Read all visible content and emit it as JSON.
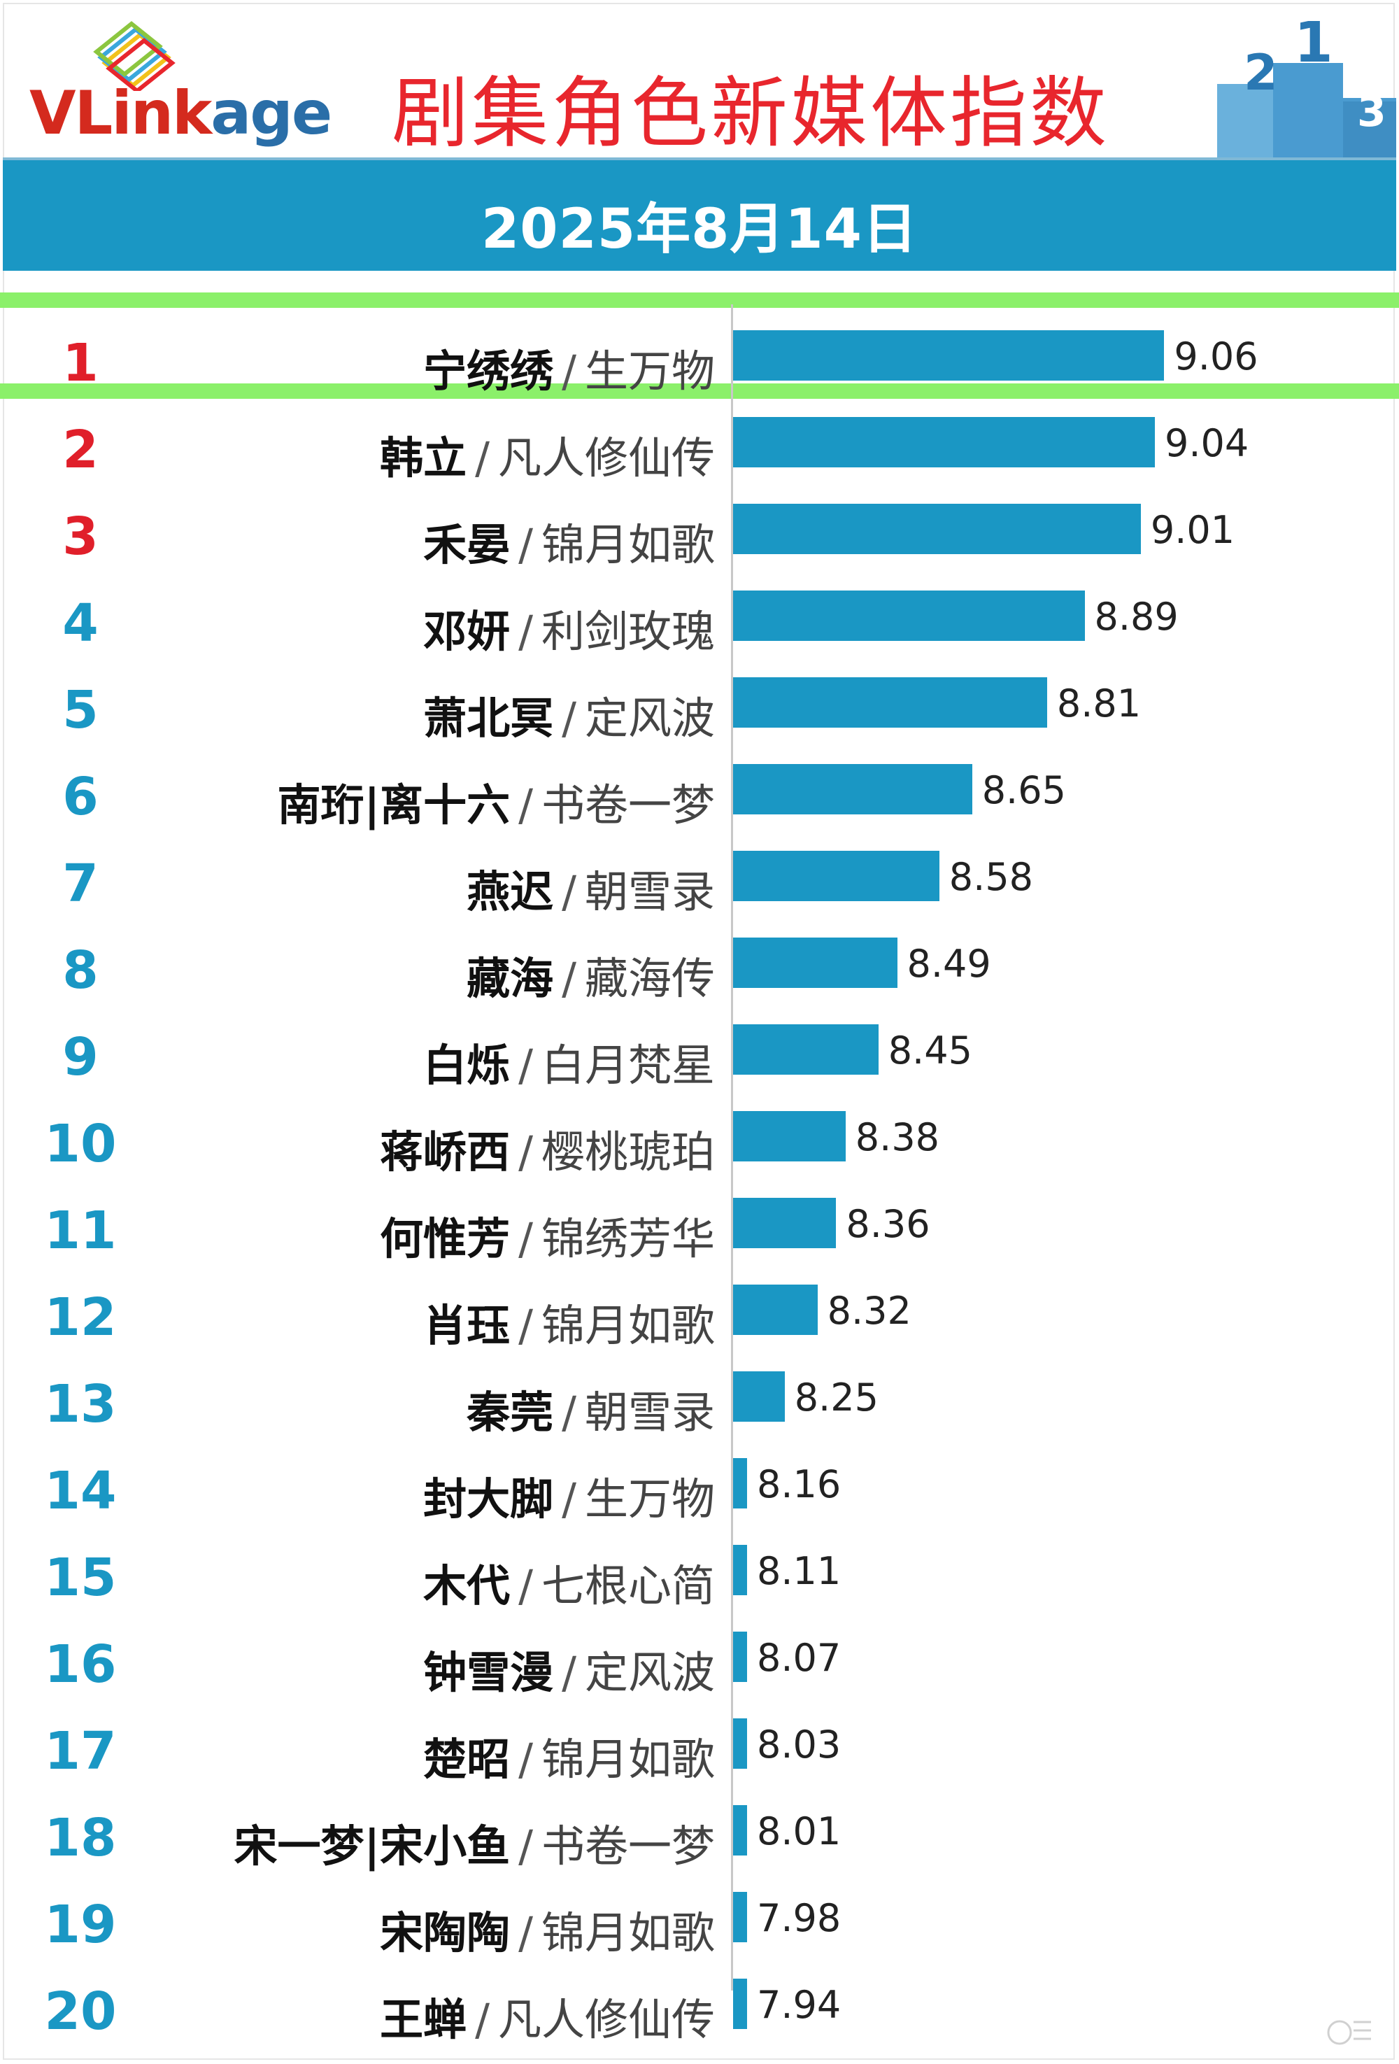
{
  "logo": {
    "text": "VLinkage"
  },
  "title": "剧集角色新媒体指数",
  "date": "2025年8月14日",
  "colors": {
    "bar": "#1a97c4",
    "rank_top3": "#e01f2a",
    "rank_other": "#1a97c4",
    "title": "#e8262d",
    "highlight": "#8bf06a"
  },
  "chart_data": {
    "type": "bar",
    "orientation": "horizontal",
    "title": "剧集角色新媒体指数",
    "subtitle": "2025年8月14日",
    "grid": false,
    "legend": "none",
    "xlim": [
      7.6,
      9.3
    ],
    "items": [
      {
        "rank": "1",
        "name": "宁绣绣",
        "drama": "生万物",
        "value": 9.06,
        "label": "9.06"
      },
      {
        "rank": "2",
        "name": "韩立",
        "drama": "凡人修仙传",
        "value": 9.04,
        "label": "9.04"
      },
      {
        "rank": "3",
        "name": "禾晏",
        "drama": "锦月如歌",
        "value": 9.01,
        "label": "9.01"
      },
      {
        "rank": "4",
        "name": "邓妍",
        "drama": "利剑玫瑰",
        "value": 8.89,
        "label": "8.89"
      },
      {
        "rank": "5",
        "name": "萧北冥",
        "drama": "定风波",
        "value": 8.81,
        "label": "8.81"
      },
      {
        "rank": "6",
        "name": "南珩|离十六",
        "drama": "书卷一梦",
        "value": 8.65,
        "label": "8.65"
      },
      {
        "rank": "7",
        "name": "燕迟",
        "drama": "朝雪录",
        "value": 8.58,
        "label": "8.58"
      },
      {
        "rank": "8",
        "name": "藏海",
        "drama": "藏海传",
        "value": 8.49,
        "label": "8.49"
      },
      {
        "rank": "9",
        "name": "白烁",
        "drama": "白月梵星",
        "value": 8.45,
        "label": "8.45"
      },
      {
        "rank": "10",
        "name": "蒋峤西",
        "drama": "樱桃琥珀",
        "value": 8.38,
        "label": "8.38"
      },
      {
        "rank": "11",
        "name": "何惟芳",
        "drama": "锦绣芳华",
        "value": 8.36,
        "label": "8.36"
      },
      {
        "rank": "12",
        "name": "肖珏",
        "drama": "锦月如歌",
        "value": 8.32,
        "label": "8.32"
      },
      {
        "rank": "13",
        "name": "秦莞",
        "drama": "朝雪录",
        "value": 8.25,
        "label": "8.25"
      },
      {
        "rank": "14",
        "name": "封大脚",
        "drama": "生万物",
        "value": 8.16,
        "label": "8.16"
      },
      {
        "rank": "15",
        "name": "木代",
        "drama": "七根心简",
        "value": 8.11,
        "label": "8.11"
      },
      {
        "rank": "16",
        "name": "钟雪漫",
        "drama": "定风波",
        "value": 8.07,
        "label": "8.07"
      },
      {
        "rank": "17",
        "name": "楚昭",
        "drama": "锦月如歌",
        "value": 8.03,
        "label": "8.03"
      },
      {
        "rank": "18",
        "name": "宋一梦|宋小鱼",
        "drama": "书卷一梦",
        "value": 8.01,
        "label": "8.01"
      },
      {
        "rank": "19",
        "name": "宋陶陶",
        "drama": "锦月如歌",
        "value": 7.98,
        "label": "7.98"
      },
      {
        "rank": "20",
        "name": "王蝉",
        "drama": "凡人修仙传",
        "value": 7.94,
        "label": "7.94"
      }
    ]
  }
}
